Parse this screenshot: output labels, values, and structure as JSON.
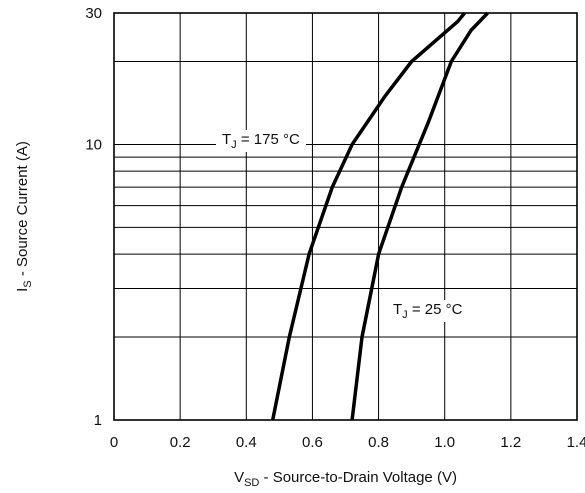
{
  "chart_data": {
    "type": "line",
    "title": "",
    "xlabel": {
      "main": "V",
      "sub": "SD",
      "rest": " - Source-to-Drain Voltage (V)"
    },
    "ylabel": {
      "main": "I",
      "sub": "S",
      "rest": " - Source Current (A)"
    },
    "xlim": [
      0,
      1.4
    ],
    "ylim": [
      1,
      30
    ],
    "yscale": "log",
    "grid": true,
    "x_ticks": [
      0,
      0.2,
      0.4,
      0.6,
      0.8,
      1.0,
      1.2,
      1.4
    ],
    "x_tick_labels": [
      "0",
      "0.2",
      "0.4",
      "0.6",
      "0.8",
      "1.0",
      "1.2",
      "1.4"
    ],
    "y_tick_labels": [
      {
        "value": 1,
        "label": "1"
      },
      {
        "value": 10,
        "label": "10"
      },
      {
        "value": 30,
        "label": "30"
      }
    ],
    "y_gridlines": [
      1,
      2,
      3,
      4,
      5,
      6,
      7,
      8,
      9,
      10,
      20,
      30
    ],
    "series": [
      {
        "annotation": {
          "main": "T",
          "sub": "J",
          "rest": " = 175 °C"
        },
        "x": [
          0.48,
          0.53,
          0.59,
          0.66,
          0.72,
          0.82,
          0.9,
          1.04,
          1.06
        ],
        "y": [
          1,
          2,
          4,
          7,
          10,
          15,
          20,
          28,
          30
        ]
      },
      {
        "annotation": {
          "main": "T",
          "sub": "J",
          "rest": " = 25 °C"
        },
        "x": [
          0.72,
          0.75,
          0.8,
          0.87,
          0.95,
          1.02,
          1.08,
          1.13
        ],
        "y": [
          1,
          2,
          4,
          7,
          12,
          20,
          26,
          30
        ]
      }
    ]
  }
}
